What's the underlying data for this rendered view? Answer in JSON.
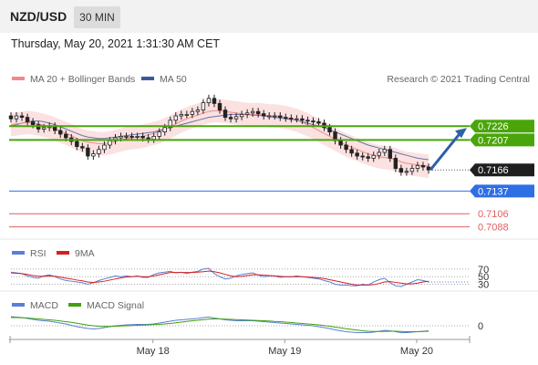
{
  "header": {
    "pair": "NZD/USD",
    "timeframe": "30 MIN",
    "datetime": "Thursday, May 20, 2021 1:31:30 AM CET",
    "copyright": "Research © 2021 Trading Central"
  },
  "colors": {
    "ma20": "#f08a8a",
    "bollinger_fill": "#fbd9d9",
    "ma50": "#3c5a9a",
    "resistance": "#4aa50a",
    "support_blue": "#2f6fe6",
    "support_red": "#e06060",
    "arrow": "#2e5fa8",
    "rsi": "#5b7fd6",
    "rsi_ma": "#d42020",
    "macd": "#5b7fd6",
    "macd_signal": "#3fa010",
    "candle": "#222222"
  },
  "chart_data": [
    {
      "type": "candlestick",
      "panel": "price",
      "legend": [
        "MA 20 + Bollinger Bands",
        "MA 50"
      ],
      "x_ticks": [
        "May 18",
        "May 19",
        "May 20"
      ],
      "ylim": [
        0.708,
        0.728
      ],
      "last_price": 0.7166,
      "levels": [
        {
          "value": 0.7226,
          "label": "0.7226",
          "kind": "resistance"
        },
        {
          "value": 0.7207,
          "label": "0.7207",
          "kind": "resistance"
        },
        {
          "value": 0.7166,
          "label": "0.7166",
          "kind": "last"
        },
        {
          "value": 0.7137,
          "label": "0.7137",
          "kind": "pivot"
        },
        {
          "value": 0.7106,
          "label": "0.7106",
          "kind": "support"
        },
        {
          "value": 0.7088,
          "label": "0.7088",
          "kind": "support"
        }
      ],
      "close": [
        0.7236,
        0.724,
        0.7238,
        0.7232,
        0.7228,
        0.7222,
        0.7224,
        0.7226,
        0.722,
        0.7215,
        0.721,
        0.7205,
        0.7198,
        0.7196,
        0.7185,
        0.7188,
        0.7194,
        0.72,
        0.7206,
        0.721,
        0.7212,
        0.7212,
        0.7211,
        0.7212,
        0.721,
        0.7208,
        0.7212,
        0.7218,
        0.7224,
        0.7234,
        0.724,
        0.7242,
        0.7242,
        0.7246,
        0.7248,
        0.7258,
        0.7264,
        0.7257,
        0.7248,
        0.7238,
        0.7236,
        0.7239,
        0.7242,
        0.7244,
        0.7246,
        0.7243,
        0.724,
        0.724,
        0.724,
        0.7238,
        0.7237,
        0.7236,
        0.7236,
        0.7234,
        0.7233,
        0.7232,
        0.723,
        0.7224,
        0.7218,
        0.7206,
        0.72,
        0.7194,
        0.7189,
        0.7185,
        0.7184,
        0.7182,
        0.7186,
        0.719,
        0.7194,
        0.7182,
        0.7168,
        0.7163,
        0.7164,
        0.7168,
        0.7172,
        0.717,
        0.7166
      ],
      "ma20": [
        0.7228,
        0.7229,
        0.723,
        0.7231,
        0.723,
        0.7229,
        0.7227,
        0.7225,
        0.7222,
        0.7219,
        0.7216,
        0.7213,
        0.7209,
        0.7206,
        0.7204,
        0.7203,
        0.7202,
        0.7202,
        0.7203,
        0.7205,
        0.7207,
        0.7209,
        0.721,
        0.7211,
        0.7212,
        0.7214,
        0.7216,
        0.7218,
        0.7221,
        0.7225,
        0.7229,
        0.7233,
        0.7236,
        0.7239,
        0.7241,
        0.7244,
        0.7246,
        0.7247,
        0.7247,
        0.7246,
        0.7245,
        0.7244,
        0.7243,
        0.7242,
        0.7242,
        0.7242,
        0.7241,
        0.724,
        0.724,
        0.7239,
        0.7238,
        0.7236,
        0.7234,
        0.7231,
        0.7228,
        0.7224,
        0.722,
        0.7216,
        0.7212,
        0.7208,
        0.7204,
        0.72,
        0.7197,
        0.7194,
        0.7191,
        0.7188,
        0.7186,
        0.7184,
        0.7183,
        0.7182,
        0.718,
        0.7177,
        0.7175,
        0.7174,
        0.7173,
        0.7172,
        0.7171
      ],
      "ma50": [
        0.7226,
        0.7228,
        0.723,
        0.7232,
        0.7233,
        0.7233,
        0.7232,
        0.723,
        0.7228,
        0.7225,
        0.7222,
        0.7219,
        0.7216,
        0.7213,
        0.7211,
        0.721,
        0.7209,
        0.7209,
        0.721,
        0.7211,
        0.7212,
        0.7213,
        0.7214,
        0.7215,
        0.7216,
        0.7217,
        0.7218,
        0.722,
        0.7222,
        0.7224,
        0.7226,
        0.7228,
        0.723,
        0.7232,
        0.7234,
        0.7236,
        0.7238,
        0.7239,
        0.724,
        0.7241,
        0.7242,
        0.7242,
        0.7242,
        0.7242,
        0.7241,
        0.7241,
        0.724,
        0.7239,
        0.7238,
        0.7237,
        0.7236,
        0.7235,
        0.7234,
        0.7232,
        0.723,
        0.7228,
        0.7226,
        0.7224,
        0.7221,
        0.7218,
        0.7215,
        0.7212,
        0.7209,
        0.7206,
        0.7203,
        0.72,
        0.7198,
        0.7196,
        0.7194,
        0.7192,
        0.719,
        0.7188,
        0.7186,
        0.7184,
        0.7182,
        0.7181,
        0.718
      ],
      "bb_width": 0.0016
    },
    {
      "type": "line",
      "panel": "rsi",
      "legend": [
        "RSI",
        "9MA"
      ],
      "levels": [
        70,
        50,
        30
      ],
      "ylim": [
        0,
        100
      ],
      "rsi": [
        62,
        60,
        58,
        52,
        48,
        46,
        52,
        55,
        50,
        44,
        40,
        38,
        36,
        34,
        30,
        34,
        40,
        44,
        48,
        52,
        50,
        52,
        50,
        52,
        48,
        48,
        56,
        60,
        62,
        64,
        60,
        62,
        58,
        62,
        64,
        70,
        72,
        58,
        50,
        44,
        46,
        52,
        56,
        58,
        60,
        54,
        50,
        52,
        52,
        48,
        50,
        50,
        52,
        50,
        48,
        46,
        44,
        40,
        36,
        30,
        28,
        28,
        26,
        26,
        30,
        28,
        36,
        42,
        46,
        34,
        26,
        24,
        30,
        36,
        42,
        40,
        36
      ],
      "ma": [
        60,
        59,
        58,
        56,
        53,
        51,
        51,
        52,
        51,
        49,
        46,
        44,
        41,
        39,
        36,
        35,
        36,
        38,
        41,
        44,
        47,
        49,
        50,
        51,
        50,
        50,
        52,
        55,
        58,
        61,
        61,
        61,
        61,
        61,
        62,
        63,
        65,
        63,
        60,
        56,
        52,
        50,
        51,
        53,
        55,
        55,
        54,
        53,
        52,
        51,
        50,
        50,
        50,
        50,
        49,
        48,
        47,
        45,
        42,
        39,
        36,
        33,
        30,
        28,
        28,
        28,
        29,
        32,
        36,
        37,
        35,
        33,
        31,
        31,
        33,
        36,
        38
      ]
    },
    {
      "type": "line",
      "panel": "macd",
      "legend": [
        "MACD",
        "MACD Signal"
      ],
      "zero_label": "0",
      "ylim": [
        -0.0006,
        0.0006
      ],
      "macd": [
        0.0004,
        0.00038,
        0.00036,
        0.00032,
        0.00028,
        0.00024,
        0.00022,
        0.0002,
        0.00016,
        0.00012,
        8e-05,
        2e-05,
        -4e-05,
        -8e-05,
        -0.00012,
        -0.00014,
        -0.00012,
        -8e-05,
        -4e-05,
        0.0,
        2e-05,
        4e-05,
        5e-05,
        6e-05,
        6e-05,
        6e-05,
        8e-05,
        0.00012,
        0.00016,
        0.0002,
        0.00024,
        0.00026,
        0.00028,
        0.0003,
        0.00032,
        0.00036,
        0.00038,
        0.00034,
        0.0003,
        0.00026,
        0.00024,
        0.00022,
        0.00022,
        0.00022,
        0.00022,
        0.0002,
        0.00018,
        0.00016,
        0.00014,
        0.00012,
        0.0001,
        8e-05,
        6e-05,
        4e-05,
        2e-05,
        0.0,
        -4e-05,
        -8e-05,
        -0.00012,
        -0.00018,
        -0.00022,
        -0.00026,
        -0.00028,
        -0.0003,
        -0.0003,
        -0.0003,
        -0.00028,
        -0.00024,
        -0.0002,
        -0.00022,
        -0.00026,
        -0.0003,
        -0.0003,
        -0.00028,
        -0.00026,
        -0.00024,
        -0.00022
      ],
      "signal": [
        0.00036,
        0.00036,
        0.00035,
        0.00034,
        0.00032,
        0.0003,
        0.00028,
        0.00026,
        0.00024,
        0.00021,
        0.00018,
        0.00015,
        0.00011,
        7e-05,
        3e-05,
        0.0,
        -2e-05,
        -3e-05,
        -3e-05,
        -2e-05,
        -1e-05,
        0.0,
        1e-05,
        2e-05,
        3e-05,
        4e-05,
        5e-05,
        6e-05,
        8e-05,
        0.0001,
        0.00013,
        0.00016,
        0.00019,
        0.00022,
        0.00024,
        0.00027,
        0.00029,
        0.0003,
        0.0003,
        0.00029,
        0.00028,
        0.00027,
        0.00026,
        0.00025,
        0.00024,
        0.00023,
        0.00022,
        0.00021,
        0.00019,
        0.00018,
        0.00016,
        0.00014,
        0.00012,
        0.0001,
        8e-05,
        6e-05,
        4e-05,
        1e-05,
        -2e-05,
        -6e-05,
        -9e-05,
        -0.00013,
        -0.00016,
        -0.00019,
        -0.00022,
        -0.00024,
        -0.00025,
        -0.00025,
        -0.00025,
        -0.00024,
        -0.00024,
        -0.00025,
        -0.00026,
        -0.00026,
        -0.00026,
        -0.00025,
        -0.00024
      ]
    }
  ]
}
